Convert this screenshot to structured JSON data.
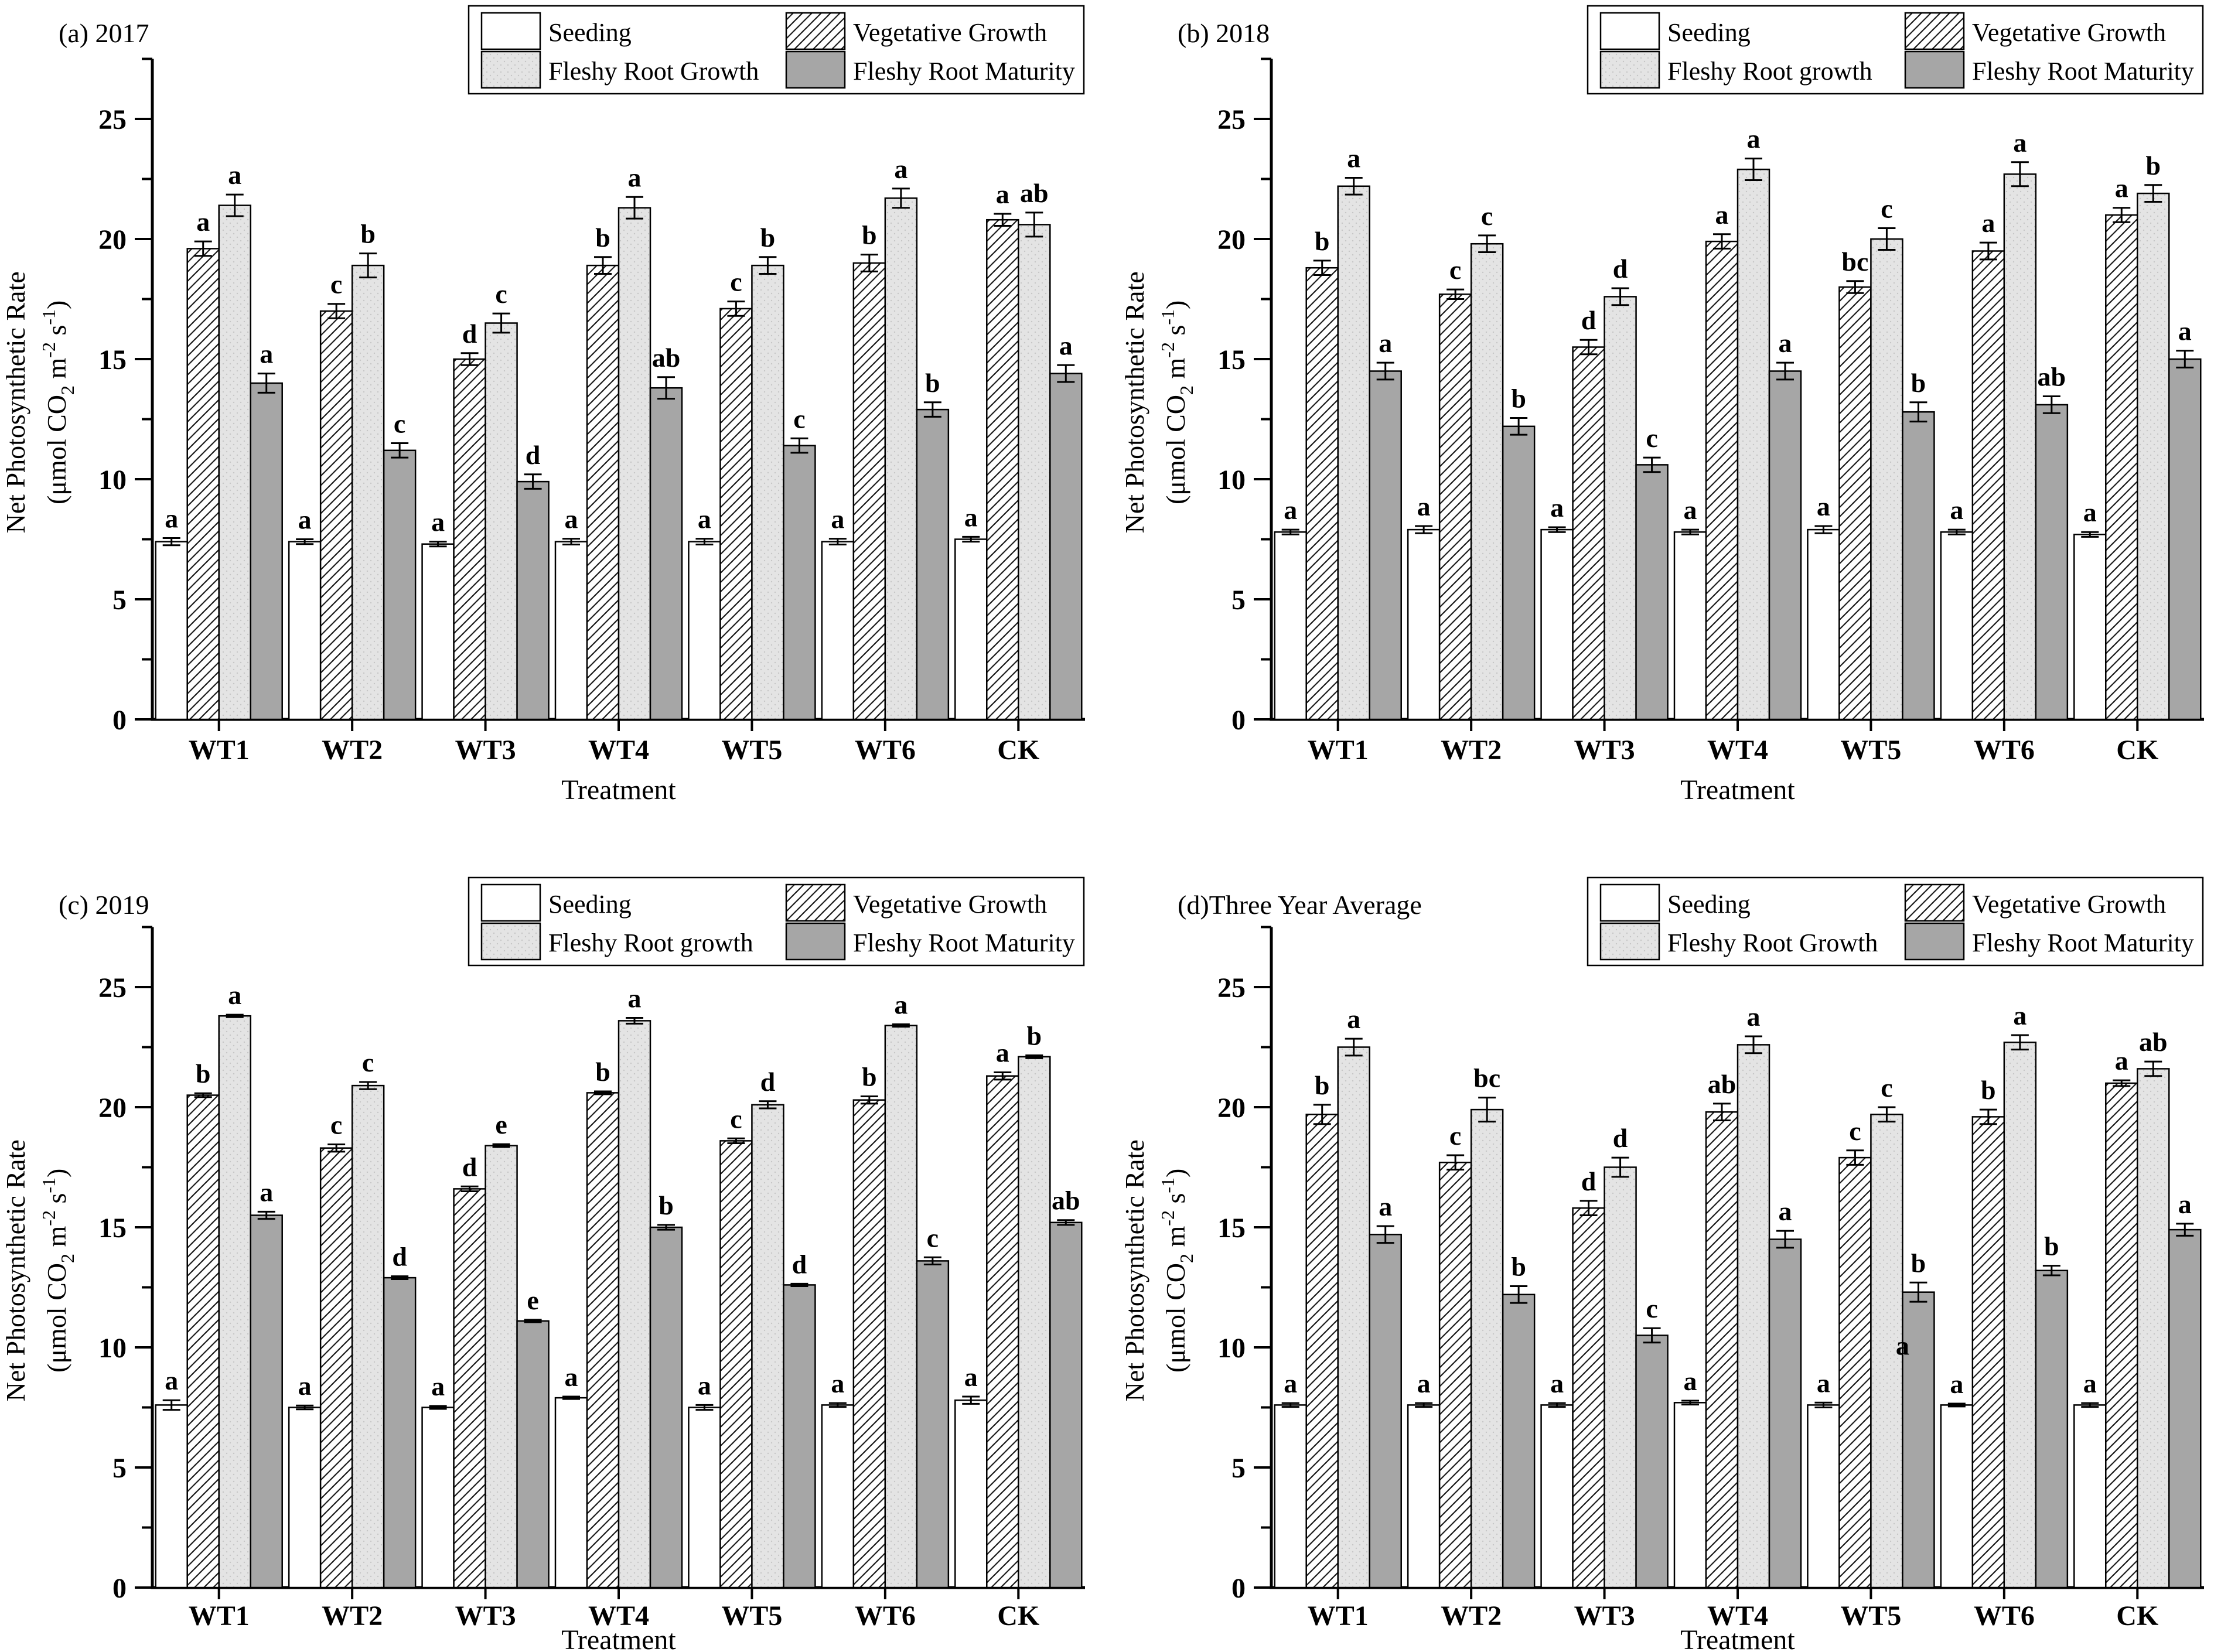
{
  "colors": {
    "background": "#ffffff",
    "bar_stroke": "#000000",
    "seeding_fill": "#ffffff",
    "vegetative_hatch_line": "#1a1a1a",
    "fleshy_root_growth_fill": "#e4e4e4",
    "fleshy_root_growth_dot": "#c6c6c6",
    "fleshy_root_maturity_fill": "#a6a6a6",
    "text": "#000000"
  },
  "shared": {
    "categories": [
      "WT1",
      "WT2",
      "WT3",
      "WT4",
      "WT5",
      "WT6",
      "CK"
    ],
    "xlabel": "Treatment",
    "ylabel_line1": "Net Photosynthetic Rate",
    "ylabel_line2_plain": "(μmol CO2 m-2 s-1)",
    "ylabel_units_parts": [
      [
        "t",
        "(μmol CO"
      ],
      [
        "sub",
        "2"
      ],
      [
        "t",
        " m"
      ],
      [
        "sup",
        "-2"
      ],
      [
        "t",
        " s"
      ],
      [
        "sup",
        "-1"
      ],
      [
        "t",
        ")"
      ]
    ],
    "yticks": [
      0,
      5,
      10,
      15,
      20,
      25
    ],
    "minor_yticks": [
      2.5,
      7.5,
      12.5,
      17.5,
      22.5,
      27.5
    ],
    "ylim": [
      0,
      27.5
    ],
    "grid": "off",
    "legend_position": "top-right-box"
  },
  "chart_data": [
    {
      "type": "bar",
      "panel_label": "(a) 2017",
      "legend": [
        "Seeding",
        "Vegetative Growth",
        "Fleshy Root Growth",
        "Fleshy Root Maturity"
      ],
      "series": [
        {
          "name": "Seeding",
          "values": [
            7.4,
            7.4,
            7.3,
            7.4,
            7.4,
            7.4,
            7.5
          ],
          "errors": [
            0.15,
            0.1,
            0.1,
            0.12,
            0.12,
            0.12,
            0.1
          ],
          "letters": [
            "a",
            "a",
            "a",
            "a",
            "a",
            "a",
            "a"
          ]
        },
        {
          "name": "Vegetative Growth",
          "values": [
            19.6,
            17.0,
            15.0,
            18.9,
            17.1,
            19.0,
            20.8
          ],
          "errors": [
            0.3,
            0.3,
            0.25,
            0.35,
            0.3,
            0.35,
            0.25
          ],
          "letters": [
            "a",
            "c",
            "d",
            "b",
            "c",
            "b",
            "a"
          ]
        },
        {
          "name": "Fleshy Root Growth",
          "values": [
            21.4,
            18.9,
            16.5,
            21.3,
            18.9,
            21.7,
            20.6
          ],
          "errors": [
            0.45,
            0.5,
            0.4,
            0.45,
            0.35,
            0.4,
            0.5
          ],
          "letters": [
            "a",
            "b",
            "c",
            "a",
            "b",
            "a",
            "ab"
          ]
        },
        {
          "name": "Fleshy Root Maturity",
          "values": [
            14.0,
            11.2,
            9.9,
            13.8,
            11.4,
            12.9,
            14.4
          ],
          "errors": [
            0.4,
            0.3,
            0.3,
            0.45,
            0.3,
            0.3,
            0.35
          ],
          "letters": [
            "a",
            "c",
            "d",
            "ab",
            "c",
            "b",
            "a"
          ]
        }
      ],
      "annotations": []
    },
    {
      "type": "bar",
      "panel_label": "(b) 2018",
      "legend": [
        "Seeding",
        "Vegetative Growth",
        "Fleshy Root growth",
        "Fleshy Root Maturity"
      ],
      "series": [
        {
          "name": "Seeding",
          "values": [
            7.8,
            7.9,
            7.9,
            7.8,
            7.9,
            7.8,
            7.7
          ],
          "errors": [
            0.1,
            0.15,
            0.1,
            0.1,
            0.15,
            0.1,
            0.1
          ],
          "letters": [
            "a",
            "a",
            "a",
            "a",
            "a",
            "a",
            "a"
          ]
        },
        {
          "name": "Vegetative Growth",
          "values": [
            18.8,
            17.7,
            15.5,
            19.9,
            18.0,
            19.5,
            21.0
          ],
          "errors": [
            0.3,
            0.2,
            0.3,
            0.3,
            0.25,
            0.35,
            0.3
          ],
          "letters": [
            "b",
            "c",
            "d",
            "a",
            "bc",
            "a",
            "a"
          ]
        },
        {
          "name": "Fleshy Root growth",
          "values": [
            22.2,
            19.8,
            17.6,
            22.9,
            20.0,
            22.7,
            21.9
          ],
          "errors": [
            0.35,
            0.35,
            0.35,
            0.45,
            0.45,
            0.5,
            0.35
          ],
          "letters": [
            "a",
            "c",
            "d",
            "a",
            "c",
            "a",
            "b"
          ]
        },
        {
          "name": "Fleshy Root Maturity",
          "values": [
            14.5,
            12.2,
            10.6,
            14.5,
            12.8,
            13.1,
            15.0
          ],
          "errors": [
            0.35,
            0.35,
            0.3,
            0.35,
            0.4,
            0.35,
            0.35
          ],
          "letters": [
            "a",
            "b",
            "c",
            "a",
            "b",
            "ab",
            "a"
          ]
        }
      ],
      "annotations": []
    },
    {
      "type": "bar",
      "panel_label": "(c) 2019",
      "legend": [
        "Seeding",
        "Vegetative Growth",
        "Fleshy Root growth",
        "Fleshy Root Maturity"
      ],
      "series": [
        {
          "name": "Seeding",
          "values": [
            7.6,
            7.5,
            7.5,
            7.9,
            7.5,
            7.6,
            7.8
          ],
          "errors": [
            0.2,
            0.08,
            0.06,
            0.05,
            0.1,
            0.08,
            0.15
          ],
          "letters": [
            "a",
            "a",
            "a",
            "a",
            "a",
            "a",
            "a"
          ]
        },
        {
          "name": "Vegetative Growth",
          "values": [
            20.5,
            18.3,
            16.6,
            20.6,
            18.6,
            20.3,
            21.3
          ],
          "errors": [
            0.08,
            0.15,
            0.1,
            0.06,
            0.1,
            0.15,
            0.15
          ],
          "letters": [
            "b",
            "c",
            "d",
            "b",
            "c",
            "b",
            "a"
          ]
        },
        {
          "name": "Fleshy Root growth",
          "values": [
            23.8,
            20.9,
            18.4,
            23.6,
            20.1,
            23.4,
            22.1
          ],
          "errors": [
            0.05,
            0.15,
            0.06,
            0.12,
            0.15,
            0.05,
            0.06
          ],
          "letters": [
            "a",
            "c",
            "e",
            "a",
            "d",
            "a",
            "b"
          ]
        },
        {
          "name": "Fleshy Root Maturity",
          "values": [
            15.5,
            12.9,
            11.1,
            15.0,
            12.6,
            13.6,
            15.2
          ],
          "errors": [
            0.15,
            0.06,
            0.05,
            0.1,
            0.05,
            0.15,
            0.1
          ],
          "letters": [
            "a",
            "d",
            "e",
            "b",
            "d",
            "c",
            "ab"
          ]
        }
      ],
      "annotations": []
    },
    {
      "type": "bar",
      "panel_label": "(d)Three Year Average",
      "legend": [
        "Seeding",
        "Vegetative Growth",
        "Fleshy Root Growth",
        "Fleshy Root Maturity"
      ],
      "series": [
        {
          "name": "Seeding",
          "values": [
            7.6,
            7.6,
            7.6,
            7.7,
            7.6,
            7.6,
            7.6
          ],
          "errors": [
            0.08,
            0.08,
            0.08,
            0.08,
            0.1,
            0.06,
            0.08
          ],
          "letters": [
            "a",
            "a",
            "a",
            "a",
            "a",
            "a",
            "a"
          ]
        },
        {
          "name": "Vegetative Growth",
          "values": [
            19.7,
            17.7,
            15.8,
            19.8,
            17.9,
            19.6,
            21.0
          ],
          "errors": [
            0.4,
            0.3,
            0.3,
            0.35,
            0.3,
            0.3,
            0.12
          ],
          "letters": [
            "b",
            "c",
            "d",
            "ab",
            "c",
            "b",
            "a"
          ]
        },
        {
          "name": "Fleshy Root Growth",
          "values": [
            22.5,
            19.9,
            17.5,
            22.6,
            19.7,
            22.7,
            21.6
          ],
          "errors": [
            0.35,
            0.5,
            0.4,
            0.35,
            0.3,
            0.3,
            0.3
          ],
          "letters": [
            "a",
            "bc",
            "d",
            "a",
            "c",
            "a",
            "ab"
          ]
        },
        {
          "name": "Fleshy Root Maturity",
          "values": [
            14.7,
            12.2,
            10.5,
            14.5,
            12.3,
            13.2,
            14.9
          ],
          "errors": [
            0.35,
            0.35,
            0.3,
            0.35,
            0.4,
            0.2,
            0.25
          ],
          "letters": [
            "a",
            "b",
            "c",
            "a",
            "b",
            "b",
            "a"
          ]
        }
      ],
      "annotations": [
        {
          "category": "WT5",
          "category_index": 4,
          "at_boundary_of_series": [
            2,
            3
          ],
          "text": "a",
          "y_value": 9.7
        }
      ]
    }
  ]
}
